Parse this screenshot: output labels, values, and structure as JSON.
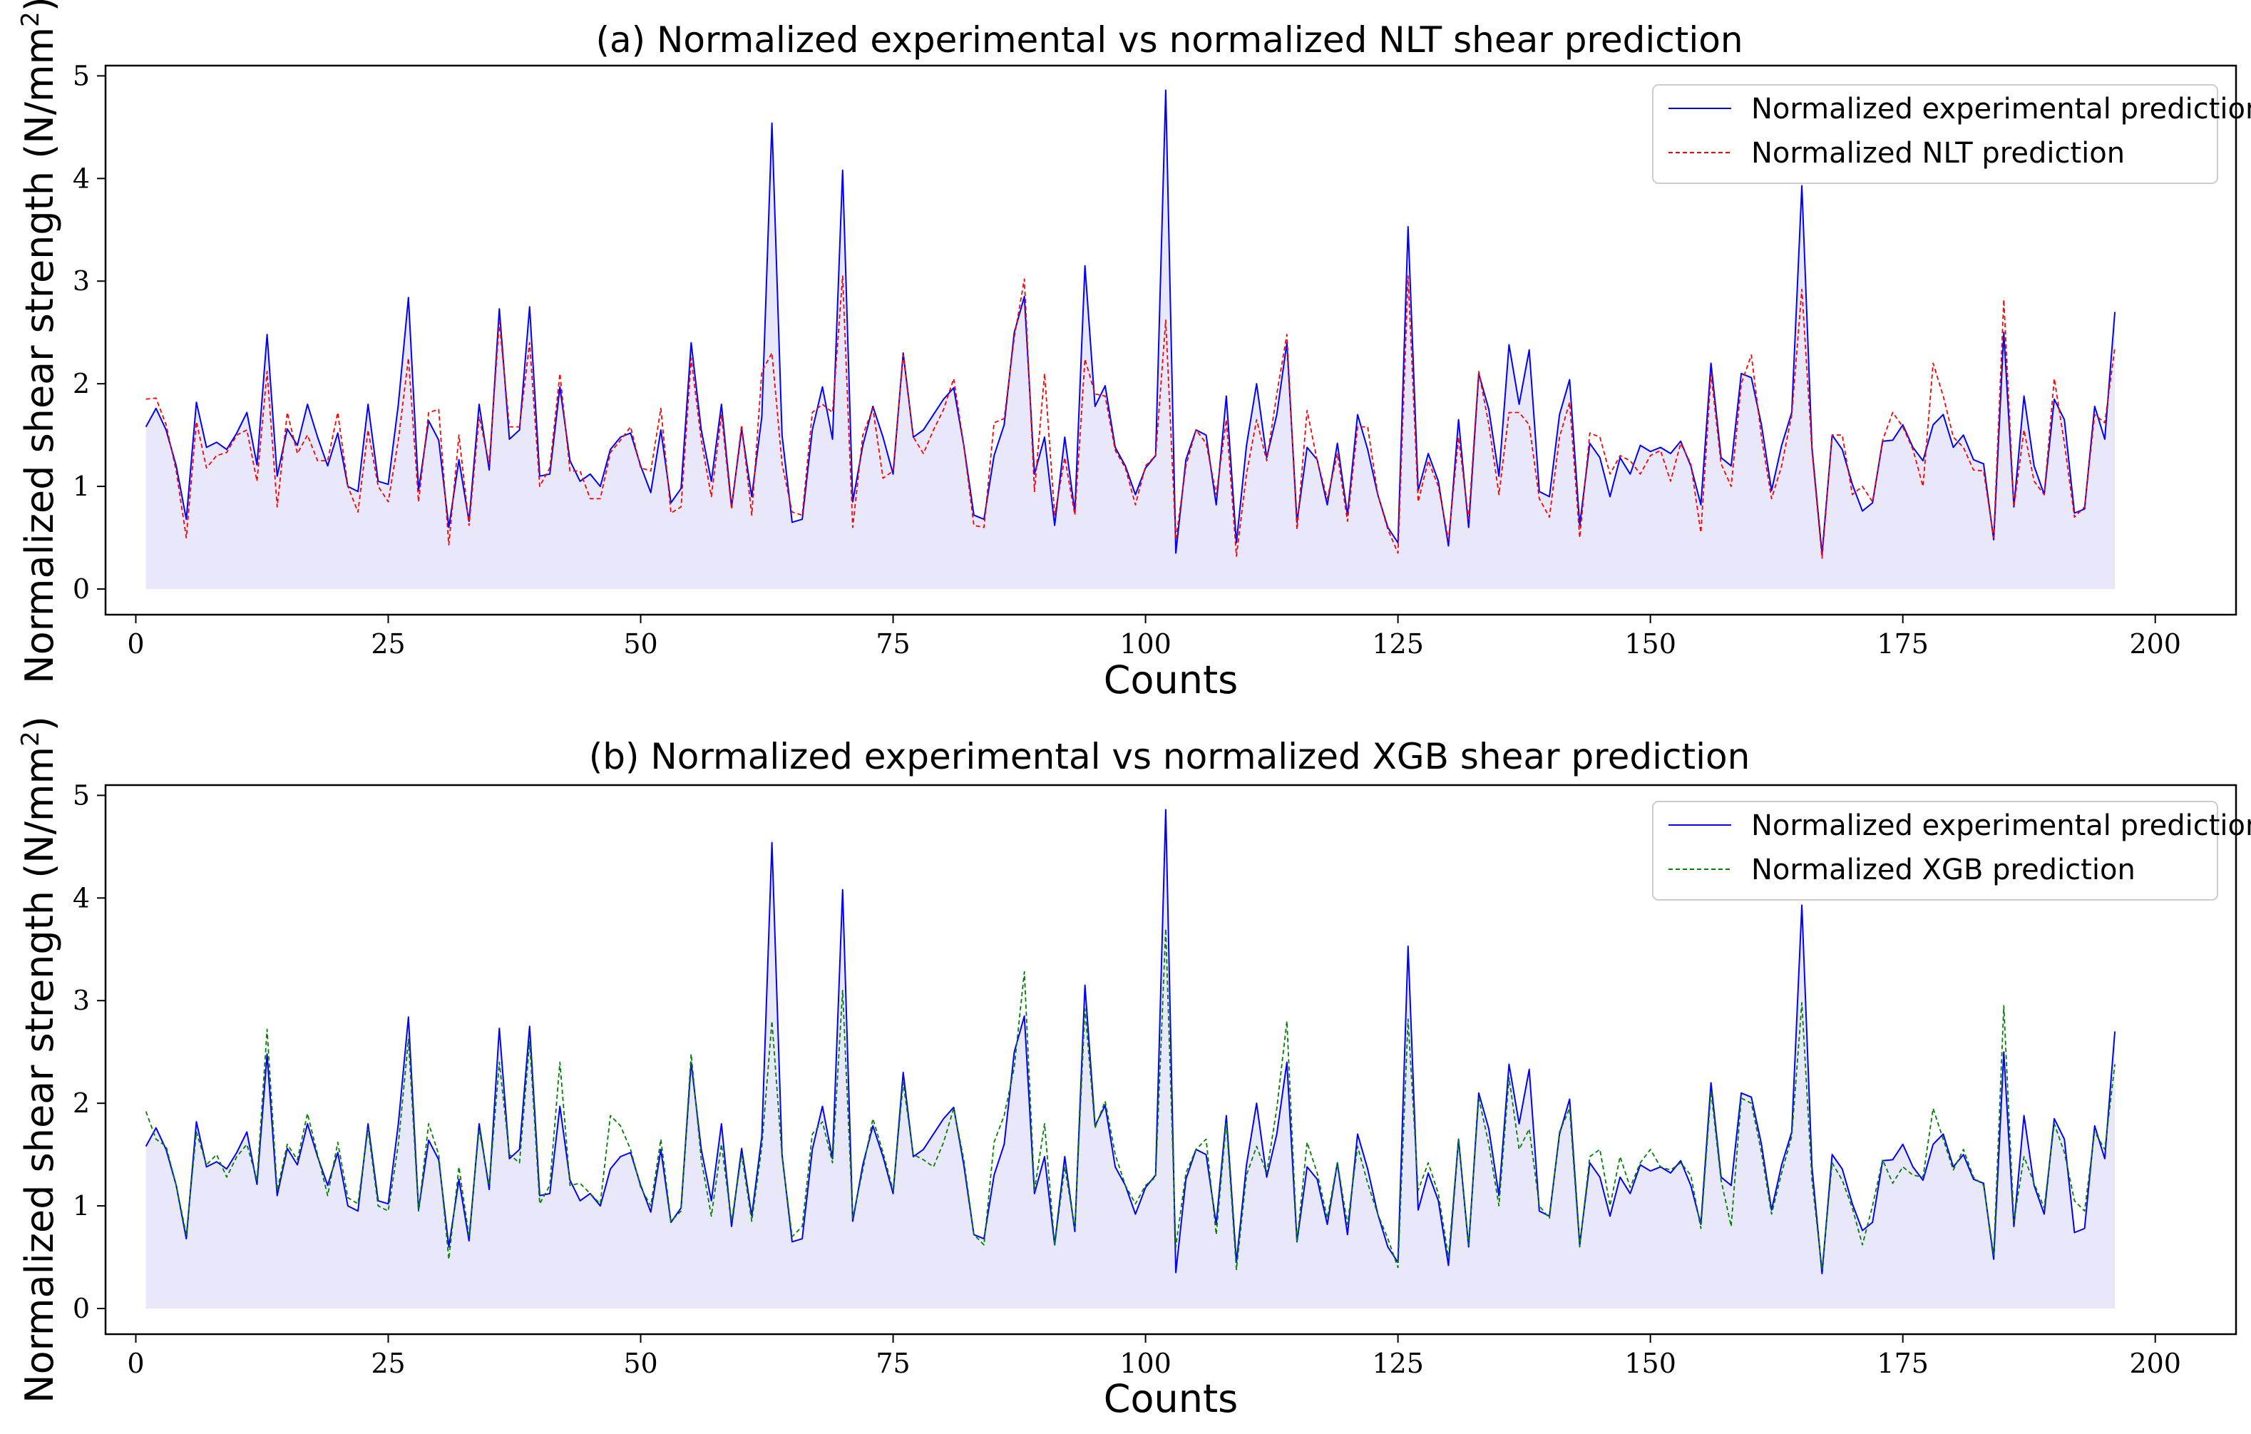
{
  "colors": {
    "experimental": "#0000ff",
    "nlt": "#ff0000",
    "xgb": "#008000",
    "fill": "#e8e8fa"
  },
  "chart_data": [
    {
      "type": "line",
      "title": "(a) Normalized experimental vs normalized NLT shear prediction",
      "xlabel": "Counts",
      "ylabel": "Normalized shear strength (N/mm",
      "ylabel_sup": "2",
      "ylabel_close": ")",
      "xlim": [
        -3,
        208
      ],
      "ylim": [
        -0.25,
        5.1
      ],
      "xticks": [
        0,
        25,
        50,
        75,
        100,
        125,
        150,
        175,
        200
      ],
      "yticks": [
        0,
        1,
        2,
        3,
        4,
        5
      ],
      "legend_position": "top-right",
      "x_start": 1,
      "series": [
        {
          "name": "Normalized experimental prediction",
          "style": "solid",
          "color": "#0000ff",
          "values": [
            1.58,
            1.76,
            1.55,
            1.2,
            0.68,
            1.82,
            1.38,
            1.43,
            1.36,
            1.52,
            1.72,
            1.21,
            2.48,
            1.1,
            1.56,
            1.4,
            1.8,
            1.48,
            1.2,
            1.52,
            1.0,
            0.95,
            1.8,
            1.05,
            1.02,
            1.8,
            2.84,
            0.96,
            1.64,
            1.45,
            0.6,
            1.26,
            0.66,
            1.8,
            1.16,
            2.73,
            1.46,
            1.55,
            2.75,
            1.1,
            1.12,
            1.97,
            1.25,
            1.05,
            1.12,
            1.0,
            1.36,
            1.48,
            1.52,
            1.2,
            0.94,
            1.55,
            0.84,
            0.98,
            2.4,
            1.55,
            1.05,
            1.8,
            0.8,
            1.56,
            0.9,
            1.68,
            4.54,
            1.5,
            0.65,
            0.68,
            1.55,
            1.97,
            1.46,
            4.08,
            0.85,
            1.4,
            1.78,
            1.48,
            1.12,
            2.3,
            1.48,
            1.55,
            1.7,
            1.85,
            1.96,
            1.4,
            0.72,
            0.68,
            1.3,
            1.6,
            2.5,
            2.85,
            1.12,
            1.48,
            0.62,
            1.48,
            0.75,
            3.15,
            1.78,
            1.98,
            1.38,
            1.2,
            0.92,
            1.18,
            1.3,
            4.86,
            0.35,
            1.26,
            1.55,
            1.5,
            0.82,
            1.88,
            0.45,
            1.4,
            2.0,
            1.28,
            1.7,
            2.4,
            0.65,
            1.38,
            1.26,
            0.82,
            1.42,
            0.72,
            1.7,
            1.36,
            0.92,
            0.6,
            0.45,
            3.53,
            0.96,
            1.32,
            1.05,
            0.42,
            1.65,
            0.6,
            2.1,
            1.75,
            1.1,
            2.38,
            1.8,
            2.33,
            0.95,
            0.9,
            1.7,
            2.04,
            0.62,
            1.42,
            1.28,
            0.9,
            1.28,
            1.12,
            1.4,
            1.34,
            1.38,
            1.32,
            1.44,
            1.2,
            0.82,
            2.2,
            1.28,
            1.2,
            2.1,
            2.06,
            1.6,
            0.96,
            1.4,
            1.72,
            3.93,
            1.38,
            0.34,
            1.5,
            1.36,
            1.02,
            0.76,
            0.84,
            1.44,
            1.45,
            1.6,
            1.38,
            1.25,
            1.6,
            1.7,
            1.38,
            1.5,
            1.26,
            1.22,
            0.48,
            2.5,
            0.8,
            1.88,
            1.2,
            0.92,
            1.85,
            1.65,
            0.74,
            0.78,
            1.78,
            1.46,
            2.7
          ]
        },
        {
          "name": "Normalized NLT prediction",
          "style": "dashed",
          "color": "#ff0000",
          "values": [
            1.85,
            1.86,
            1.6,
            1.15,
            0.5,
            1.63,
            1.18,
            1.3,
            1.33,
            1.5,
            1.55,
            1.05,
            2.12,
            0.8,
            1.72,
            1.32,
            1.5,
            1.25,
            1.25,
            1.72,
            1.0,
            0.75,
            1.55,
            1.0,
            0.85,
            1.45,
            2.25,
            0.85,
            1.72,
            1.75,
            0.43,
            1.5,
            0.62,
            1.68,
            1.22,
            2.6,
            1.58,
            1.58,
            2.4,
            1.0,
            1.18,
            2.1,
            1.15,
            1.15,
            0.88,
            0.88,
            1.33,
            1.45,
            1.58,
            1.18,
            1.15,
            1.76,
            0.74,
            0.8,
            2.25,
            1.45,
            0.9,
            1.7,
            0.78,
            1.6,
            0.72,
            2.12,
            2.3,
            1.22,
            0.75,
            0.72,
            1.72,
            1.8,
            1.72,
            3.05,
            0.6,
            1.5,
            1.76,
            1.08,
            1.15,
            2.28,
            1.48,
            1.32,
            1.55,
            1.75,
            2.05,
            1.4,
            0.62,
            0.6,
            1.62,
            1.66,
            2.45,
            3.02,
            0.95,
            2.1,
            0.72,
            1.28,
            0.72,
            2.24,
            1.9,
            1.88,
            1.35,
            1.18,
            0.82,
            1.2,
            1.3,
            2.62,
            0.48,
            1.2,
            1.55,
            1.42,
            0.92,
            1.65,
            0.32,
            1.12,
            1.65,
            1.25,
            1.9,
            2.48,
            0.58,
            1.74,
            1.25,
            0.88,
            1.32,
            0.66,
            1.58,
            1.58,
            0.92,
            0.58,
            0.35,
            3.05,
            0.85,
            1.25,
            1.0,
            0.48,
            1.48,
            0.68,
            2.12,
            1.6,
            0.92,
            1.72,
            1.72,
            1.6,
            0.88,
            0.7,
            1.48,
            1.82,
            0.5,
            1.52,
            1.48,
            1.12,
            1.3,
            1.25,
            1.12,
            1.3,
            1.35,
            1.05,
            1.42,
            1.22,
            0.55,
            2.1,
            1.22,
            1.0,
            2.0,
            2.28,
            1.48,
            0.88,
            1.2,
            1.7,
            2.92,
            1.35,
            0.3,
            1.5,
            1.5,
            0.92,
            1.0,
            0.85,
            1.45,
            1.72,
            1.58,
            1.36,
            1.0,
            2.2,
            1.88,
            1.48,
            1.38,
            1.16,
            1.15,
            0.5,
            2.82,
            0.8,
            1.55,
            1.05,
            0.92,
            2.05,
            1.42,
            0.7,
            0.8,
            1.7,
            1.62,
            2.35
          ]
        }
      ]
    },
    {
      "type": "line",
      "title": "(b) Normalized experimental vs normalized XGB shear prediction",
      "xlabel": "Counts",
      "ylabel": "Normalized shear strength (N/mm",
      "ylabel_sup": "2",
      "ylabel_close": ")",
      "xlim": [
        -3,
        208
      ],
      "ylim": [
        -0.25,
        5.1
      ],
      "xticks": [
        0,
        25,
        50,
        75,
        100,
        125,
        150,
        175,
        200
      ],
      "yticks": [
        0,
        1,
        2,
        3,
        4,
        5
      ],
      "legend_position": "top-right",
      "x_start": 1,
      "series": [
        {
          "name": "Normalized experimental prediction",
          "style": "solid",
          "color": "#0000ff",
          "values": [
            1.58,
            1.76,
            1.55,
            1.2,
            0.68,
            1.82,
            1.38,
            1.43,
            1.36,
            1.52,
            1.72,
            1.21,
            2.48,
            1.1,
            1.56,
            1.4,
            1.8,
            1.48,
            1.2,
            1.52,
            1.0,
            0.95,
            1.8,
            1.05,
            1.02,
            1.8,
            2.84,
            0.96,
            1.64,
            1.45,
            0.6,
            1.26,
            0.66,
            1.8,
            1.16,
            2.73,
            1.46,
            1.55,
            2.75,
            1.1,
            1.12,
            1.97,
            1.25,
            1.05,
            1.12,
            1.0,
            1.36,
            1.48,
            1.52,
            1.2,
            0.94,
            1.55,
            0.84,
            0.98,
            2.4,
            1.55,
            1.05,
            1.8,
            0.8,
            1.56,
            0.9,
            1.68,
            4.54,
            1.5,
            0.65,
            0.68,
            1.55,
            1.97,
            1.46,
            4.08,
            0.85,
            1.4,
            1.78,
            1.48,
            1.12,
            2.3,
            1.48,
            1.55,
            1.7,
            1.85,
            1.96,
            1.4,
            0.72,
            0.68,
            1.3,
            1.6,
            2.5,
            2.85,
            1.12,
            1.48,
            0.62,
            1.48,
            0.75,
            3.15,
            1.78,
            1.98,
            1.38,
            1.2,
            0.92,
            1.18,
            1.3,
            4.86,
            0.35,
            1.26,
            1.55,
            1.5,
            0.82,
            1.88,
            0.45,
            1.4,
            2.0,
            1.28,
            1.7,
            2.4,
            0.65,
            1.38,
            1.26,
            0.82,
            1.42,
            0.72,
            1.7,
            1.36,
            0.92,
            0.6,
            0.45,
            3.53,
            0.96,
            1.32,
            1.05,
            0.42,
            1.65,
            0.6,
            2.1,
            1.75,
            1.1,
            2.38,
            1.8,
            2.33,
            0.95,
            0.9,
            1.7,
            2.04,
            0.62,
            1.42,
            1.28,
            0.9,
            1.28,
            1.12,
            1.4,
            1.34,
            1.38,
            1.32,
            1.44,
            1.2,
            0.82,
            2.2,
            1.28,
            1.2,
            2.1,
            2.06,
            1.6,
            0.96,
            1.4,
            1.72,
            3.93,
            1.38,
            0.34,
            1.5,
            1.36,
            1.02,
            0.76,
            0.84,
            1.44,
            1.45,
            1.6,
            1.38,
            1.25,
            1.6,
            1.7,
            1.38,
            1.5,
            1.26,
            1.22,
            0.48,
            2.5,
            0.8,
            1.88,
            1.2,
            0.92,
            1.85,
            1.65,
            0.74,
            0.78,
            1.78,
            1.46,
            2.7
          ]
        },
        {
          "name": "Normalized XGB prediction",
          "style": "dashed",
          "color": "#008000",
          "values": [
            1.92,
            1.65,
            1.58,
            1.2,
            0.72,
            1.72,
            1.4,
            1.5,
            1.28,
            1.48,
            1.6,
            1.25,
            2.72,
            1.15,
            1.6,
            1.45,
            1.9,
            1.5,
            1.1,
            1.62,
            1.08,
            1.02,
            1.75,
            1.0,
            0.95,
            1.6,
            2.62,
            0.95,
            1.8,
            1.5,
            0.48,
            1.38,
            0.7,
            1.75,
            1.2,
            2.4,
            1.5,
            1.42,
            2.6,
            1.02,
            1.2,
            2.4,
            1.2,
            1.22,
            1.12,
            1.02,
            1.88,
            1.78,
            1.55,
            1.18,
            1.0,
            1.65,
            0.85,
            0.95,
            2.48,
            1.45,
            0.9,
            1.6,
            0.85,
            1.5,
            0.85,
            1.58,
            2.8,
            1.48,
            0.7,
            0.8,
            1.7,
            1.82,
            1.42,
            3.1,
            0.88,
            1.35,
            1.85,
            1.52,
            1.15,
            2.2,
            1.5,
            1.45,
            1.38,
            1.62,
            1.95,
            1.45,
            0.72,
            0.62,
            1.62,
            1.88,
            2.35,
            3.28,
            1.15,
            1.8,
            0.62,
            1.38,
            0.78,
            2.92,
            1.76,
            2.02,
            1.5,
            1.2,
            1.02,
            1.2,
            1.28,
            3.7,
            0.6,
            1.32,
            1.55,
            1.65,
            0.72,
            1.82,
            0.38,
            1.3,
            1.58,
            1.32,
            1.95,
            2.8,
            0.65,
            1.62,
            1.32,
            0.88,
            1.42,
            0.82,
            1.58,
            1.22,
            0.92,
            0.68,
            0.4,
            2.82,
            1.15,
            1.42,
            1.12,
            0.5,
            1.65,
            0.62,
            2.05,
            1.6,
            1.0,
            2.25,
            1.55,
            1.75,
            1.0,
            0.88,
            1.72,
            1.95,
            0.6,
            1.48,
            1.55,
            1.0,
            1.48,
            1.18,
            1.42,
            1.55,
            1.38,
            1.35,
            1.42,
            1.3,
            0.78,
            2.12,
            1.25,
            0.8,
            2.05,
            2.0,
            1.52,
            0.92,
            1.32,
            1.68,
            2.98,
            1.25,
            0.38,
            1.42,
            1.25,
            0.98,
            0.62,
            1.0,
            1.45,
            1.22,
            1.38,
            1.3,
            1.28,
            1.95,
            1.65,
            1.35,
            1.55,
            1.28,
            1.2,
            0.52,
            2.95,
            0.85,
            1.48,
            1.22,
            0.98,
            1.8,
            1.52,
            1.05,
            0.95,
            1.72,
            1.55,
            2.38
          ]
        }
      ]
    }
  ]
}
